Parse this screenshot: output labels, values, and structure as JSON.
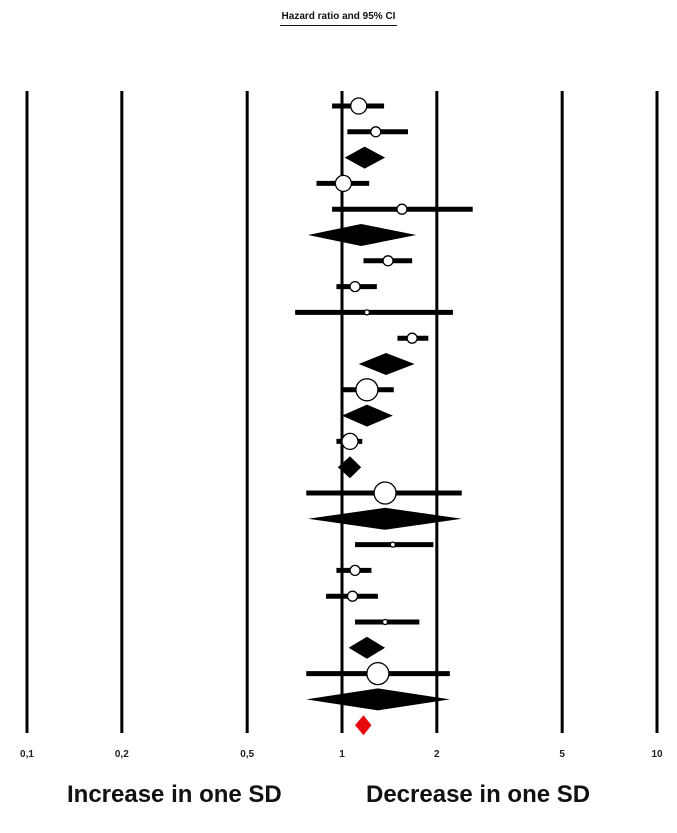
{
  "chart_data": {
    "type": "forest",
    "title": "Hazard ratio and 95% CI",
    "x_scale": "log",
    "xlim": [
      0.1,
      10
    ],
    "reference_line": 1,
    "x_ticks": [
      0.1,
      0.2,
      0.5,
      1,
      2,
      5,
      10
    ],
    "x_tick_labels": [
      "0,1",
      "0,2",
      "0,5",
      "1",
      "2",
      "5",
      "10"
    ],
    "gridlines": "vertical at each tick",
    "direction_labels": {
      "left": "Increase in one SD",
      "right": "Decrease in one SD"
    },
    "rows": [
      {
        "kind": "study",
        "hr": 1.13,
        "low": 0.93,
        "high": 1.36,
        "weight": "medium"
      },
      {
        "kind": "study",
        "hr": 1.28,
        "low": 1.04,
        "high": 1.62,
        "weight": "small"
      },
      {
        "kind": "summary",
        "hr": 1.18,
        "low": 1.02,
        "high": 1.37
      },
      {
        "kind": "study",
        "hr": 1.01,
        "low": 0.83,
        "high": 1.22,
        "weight": "medium"
      },
      {
        "kind": "study",
        "hr": 1.55,
        "low": 0.93,
        "high": 2.6,
        "weight": "small"
      },
      {
        "kind": "summary",
        "hr": 1.15,
        "low": 0.78,
        "high": 1.72
      },
      {
        "kind": "study",
        "hr": 1.4,
        "low": 1.17,
        "high": 1.67,
        "weight": "small"
      },
      {
        "kind": "study",
        "hr": 1.1,
        "low": 0.96,
        "high": 1.29,
        "weight": "small"
      },
      {
        "kind": "study",
        "hr": 1.2,
        "low": 0.71,
        "high": 2.25,
        "weight": "tiny"
      },
      {
        "kind": "study",
        "hr": 1.67,
        "low": 1.5,
        "high": 1.88,
        "weight": "small"
      },
      {
        "kind": "summary",
        "hr": 1.38,
        "low": 1.13,
        "high": 1.7
      },
      {
        "kind": "study",
        "hr": 1.2,
        "low": 0.99,
        "high": 1.46,
        "weight": "large"
      },
      {
        "kind": "summary",
        "hr": 1.2,
        "low": 1.0,
        "high": 1.45
      },
      {
        "kind": "study",
        "hr": 1.06,
        "low": 0.96,
        "high": 1.16,
        "weight": "medium"
      },
      {
        "kind": "summary",
        "hr": 1.06,
        "low": 0.97,
        "high": 1.15
      },
      {
        "kind": "study",
        "hr": 1.37,
        "low": 0.77,
        "high": 2.4,
        "weight": "large"
      },
      {
        "kind": "summary",
        "hr": 1.37,
        "low": 0.78,
        "high": 2.4
      },
      {
        "kind": "study",
        "hr": 1.45,
        "low": 1.1,
        "high": 1.95,
        "weight": "tiny"
      },
      {
        "kind": "study",
        "hr": 1.1,
        "low": 0.96,
        "high": 1.24,
        "weight": "small"
      },
      {
        "kind": "study",
        "hr": 1.08,
        "low": 0.89,
        "high": 1.3,
        "weight": "small"
      },
      {
        "kind": "study",
        "hr": 1.37,
        "low": 1.1,
        "high": 1.76,
        "weight": "tiny"
      },
      {
        "kind": "summary",
        "hr": 1.2,
        "low": 1.05,
        "high": 1.37
      },
      {
        "kind": "study",
        "hr": 1.3,
        "low": 0.77,
        "high": 2.2,
        "weight": "large"
      },
      {
        "kind": "summary",
        "hr": 1.3,
        "low": 0.77,
        "high": 2.2
      },
      {
        "kind": "overall",
        "hr": 1.17,
        "low": 1.1,
        "high": 1.24
      }
    ],
    "colors": {
      "lines": "#000000",
      "study_marker_fill": "#ffffff",
      "summary_fill": "#000000",
      "overall_fill": "#e8090f"
    }
  }
}
